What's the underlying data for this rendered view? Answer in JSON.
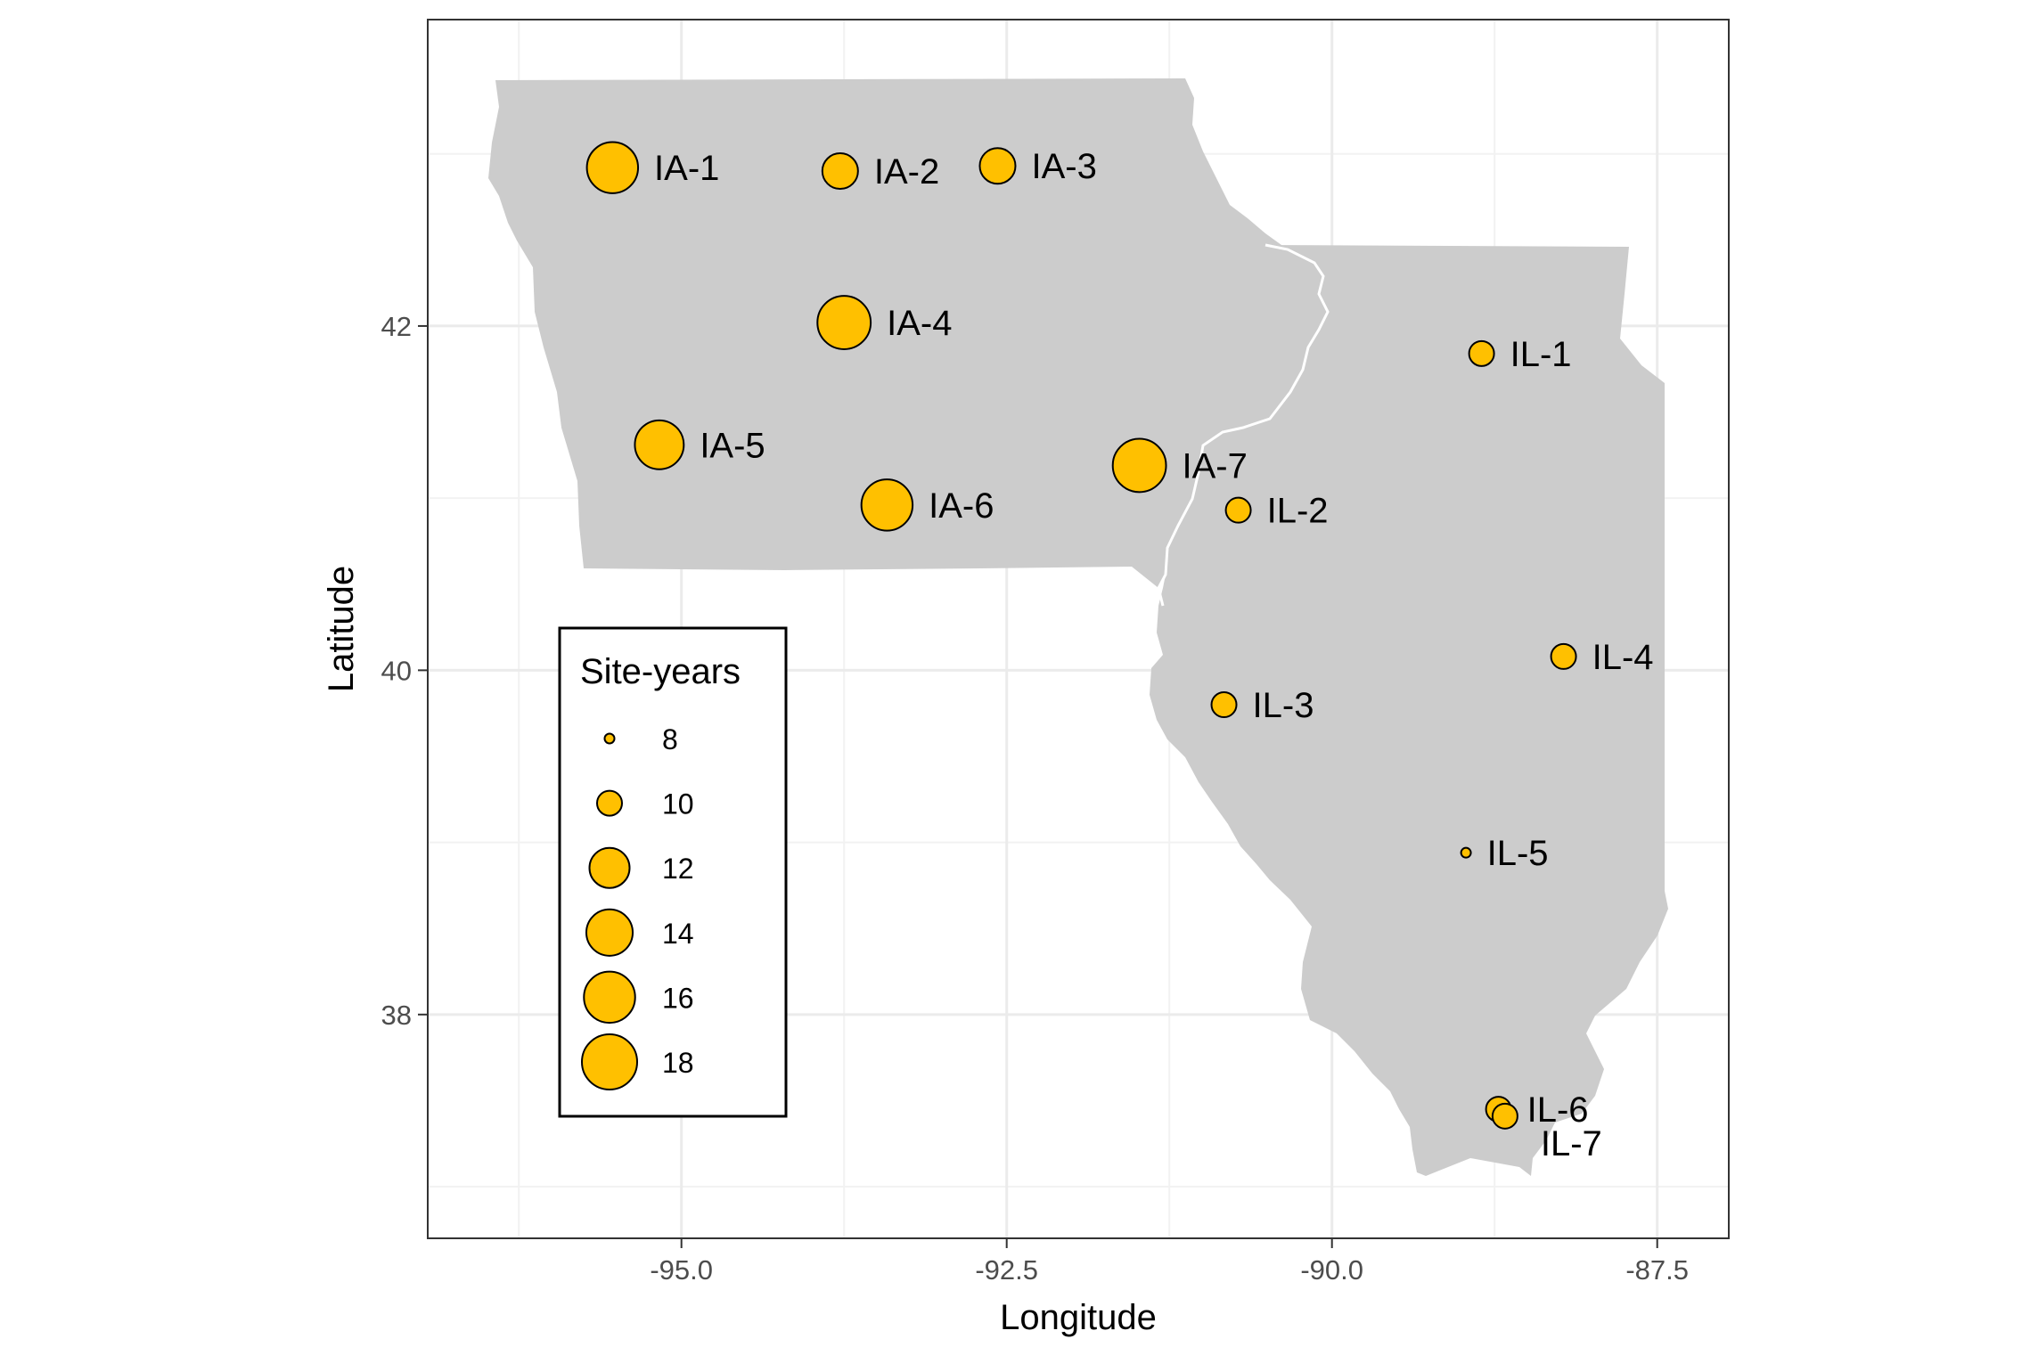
{
  "chart_data": {
    "type": "scatter",
    "subtype": "proportional-symbol-map",
    "title": "",
    "xlabel": "Longitude",
    "ylabel": "Latitude",
    "xlim": [
      -96.95,
      -86.95
    ],
    "ylim": [
      36.7,
      43.78
    ],
    "x_ticks": [
      {
        "value": -95.0,
        "label": "-95.0"
      },
      {
        "value": -92.5,
        "label": "-92.5"
      },
      {
        "value": -90.0,
        "label": "-90.0"
      },
      {
        "value": -87.5,
        "label": "-87.5"
      }
    ],
    "y_ticks": [
      {
        "value": 38,
        "label": "38"
      },
      {
        "value": 40,
        "label": "40"
      },
      {
        "value": 42,
        "label": "42"
      }
    ],
    "grid": true,
    "regions": [
      "Iowa",
      "Illinois"
    ],
    "point_fill": "#FFC000",
    "region_fill": "#CCCCCC",
    "legend": {
      "title": "Site-years",
      "placement": "inside-bottom-left",
      "entries": [
        {
          "value": 8,
          "label": "8"
        },
        {
          "value": 10,
          "label": "10"
        },
        {
          "value": 12,
          "label": "12"
        },
        {
          "value": 14,
          "label": "14"
        },
        {
          "value": 16,
          "label": "16"
        },
        {
          "value": 18,
          "label": "18"
        }
      ]
    },
    "points": [
      {
        "label": "IA-1",
        "lon": -95.53,
        "lat": 42.92,
        "site_years": 16
      },
      {
        "label": "IA-2",
        "lon": -93.78,
        "lat": 42.9,
        "site_years": 11
      },
      {
        "label": "IA-3",
        "lon": -92.57,
        "lat": 42.93,
        "site_years": 11
      },
      {
        "label": "IA-4",
        "lon": -93.75,
        "lat": 42.02,
        "site_years": 17
      },
      {
        "label": "IA-5",
        "lon": -95.17,
        "lat": 41.31,
        "site_years": 15
      },
      {
        "label": "IA-6",
        "lon": -93.42,
        "lat": 40.96,
        "site_years": 16
      },
      {
        "label": "IA-7",
        "lon": -91.48,
        "lat": 41.19,
        "site_years": 17
      },
      {
        "label": "IL-1",
        "lon": -88.85,
        "lat": 41.84,
        "site_years": 10
      },
      {
        "label": "IL-2",
        "lon": -90.72,
        "lat": 40.93,
        "site_years": 10
      },
      {
        "label": "IL-3",
        "lon": -90.83,
        "lat": 39.8,
        "site_years": 10
      },
      {
        "label": "IL-4",
        "lon": -88.22,
        "lat": 40.08,
        "site_years": 10
      },
      {
        "label": "IL-5",
        "lon": -88.97,
        "lat": 38.94,
        "site_years": 8
      },
      {
        "label": "IL-6",
        "lon": -88.72,
        "lat": 37.45,
        "site_years": 10
      },
      {
        "label": "IL-7",
        "lon": -88.67,
        "lat": 37.41,
        "site_years": 10
      }
    ]
  }
}
